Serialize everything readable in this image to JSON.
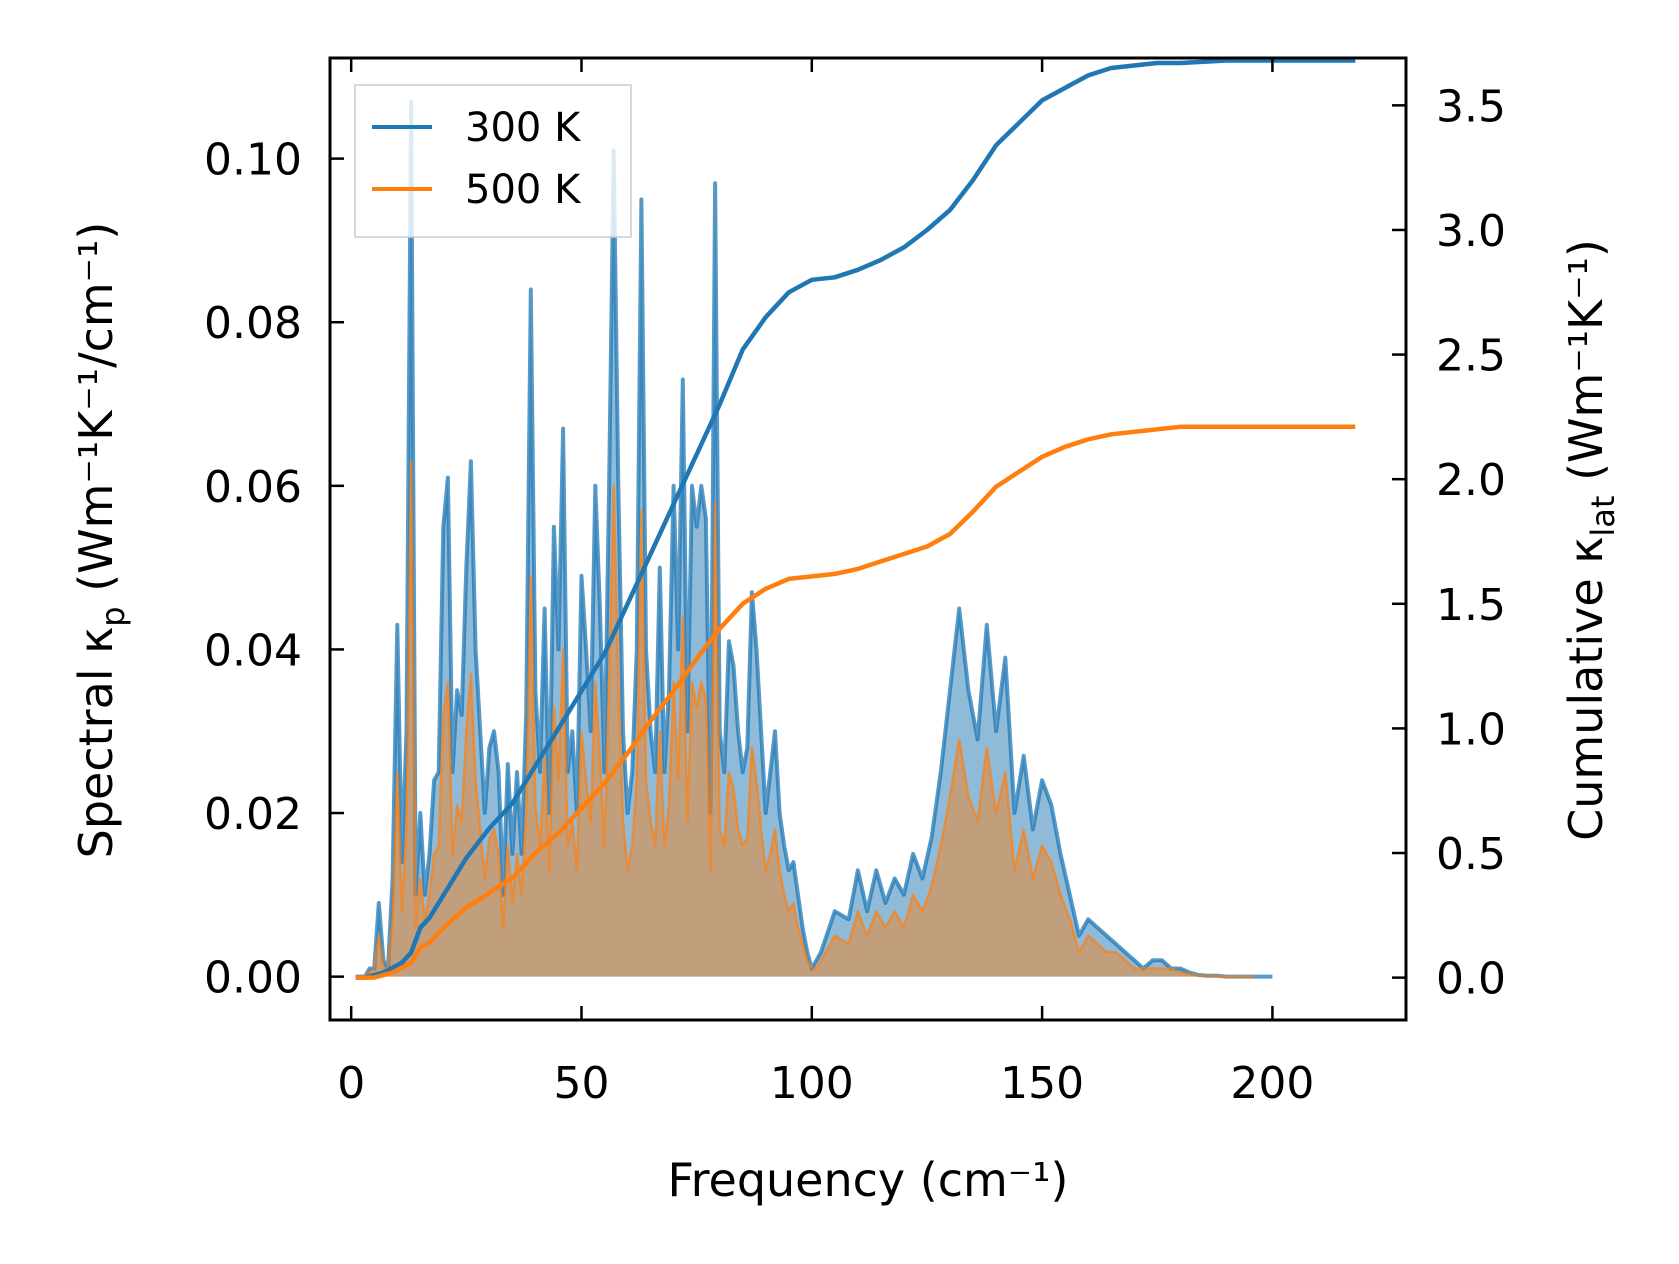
{
  "chart_data": {
    "type": "line",
    "x_label": "Frequency (cm⁻¹)",
    "y_label_left": "Spectral κₚ (Wm⁻¹K⁻¹/cm⁻¹)",
    "y_label_right": "Cumulative κ_lat (Wm⁻¹K⁻¹)",
    "y_label_left_parts": {
      "main": "Spectral κ",
      "sub": "p",
      "rest": " (Wm⁻¹K⁻¹/cm⁻¹)"
    },
    "y_label_right_parts": {
      "main": "Cumulative κ",
      "sub": "lat",
      "rest": " (Wm⁻¹K⁻¹)"
    },
    "x_ticks": [
      "0",
      "50",
      "100",
      "150",
      "200"
    ],
    "x_tick_values": [
      0,
      50,
      100,
      150,
      200
    ],
    "y_left_ticks": [
      "0.00",
      "0.02",
      "0.04",
      "0.06",
      "0.08",
      "0.10"
    ],
    "y_left_tick_values": [
      0,
      0.02,
      0.04,
      0.06,
      0.08,
      0.1
    ],
    "y_right_ticks": [
      "0.0",
      "0.5",
      "1.0",
      "1.5",
      "2.0",
      "2.5",
      "3.0",
      "3.5"
    ],
    "y_right_tick_values": [
      0,
      0.5,
      1.0,
      1.5,
      2.0,
      2.5,
      3.0,
      3.5
    ],
    "xlim": [
      -4.6,
      229
    ],
    "ylim_left": [
      -0.0053,
      0.1123
    ],
    "ylim_right": [
      -0.17,
      3.69
    ],
    "legend": {
      "position": "top-left",
      "entries": [
        "300 K",
        "500 K"
      ]
    },
    "series": [
      {
        "name": "300 K",
        "color": "#1f77b4",
        "spectral_x": [
          1,
          2,
          3,
          4,
          5,
          6,
          7,
          8,
          9,
          10,
          11,
          12,
          13,
          14,
          15,
          16,
          17,
          18,
          19,
          20,
          21,
          22,
          23,
          24,
          25,
          26,
          27,
          28,
          29,
          30,
          31,
          32,
          33,
          34,
          35,
          36,
          37,
          38,
          39,
          40,
          41,
          42,
          43,
          44,
          45,
          46,
          47,
          48,
          49,
          50,
          51,
          52,
          53,
          54,
          55,
          56,
          57,
          58,
          59,
          60,
          61,
          62,
          63,
          64,
          65,
          66,
          67,
          68,
          69,
          70,
          71,
          72,
          73,
          74,
          75,
          76,
          77,
          78,
          79,
          80,
          81,
          82,
          83,
          84,
          85,
          86,
          87,
          88,
          89,
          90,
          91,
          92,
          93,
          94,
          95,
          96,
          97,
          98,
          99,
          100,
          101,
          102,
          105,
          108,
          110,
          112,
          114,
          116,
          118,
          120,
          122,
          124,
          126,
          128,
          130,
          132,
          134,
          136,
          138,
          140,
          142,
          144,
          146,
          148,
          150,
          152,
          154,
          156,
          158,
          160,
          162,
          164,
          166,
          168,
          170,
          172,
          174,
          176,
          178,
          180,
          182,
          184,
          186,
          188,
          190,
          192,
          194,
          196,
          200,
          210,
          218
        ],
        "spectral_y": [
          0,
          0,
          0,
          0.001,
          0.001,
          0.009,
          0.002,
          0.001,
          0.012,
          0.043,
          0.014,
          0.03,
          0.107,
          0.01,
          0.02,
          0.01,
          0.015,
          0.024,
          0.025,
          0.055,
          0.061,
          0.025,
          0.035,
          0.032,
          0.05,
          0.063,
          0.04,
          0.03,
          0.02,
          0.028,
          0.03,
          0.025,
          0.01,
          0.026,
          0.015,
          0.025,
          0.015,
          0.032,
          0.084,
          0.035,
          0.025,
          0.045,
          0.02,
          0.055,
          0.04,
          0.067,
          0.025,
          0.03,
          0.02,
          0.049,
          0.04,
          0.03,
          0.06,
          0.045,
          0.025,
          0.06,
          0.101,
          0.06,
          0.03,
          0.02,
          0.025,
          0.04,
          0.095,
          0.04,
          0.03,
          0.025,
          0.05,
          0.025,
          0.035,
          0.06,
          0.04,
          0.073,
          0.03,
          0.06,
          0.055,
          0.06,
          0.056,
          0.02,
          0.097,
          0.03,
          0.025,
          0.041,
          0.038,
          0.03,
          0.025,
          0.028,
          0.047,
          0.04,
          0.03,
          0.02,
          0.025,
          0.03,
          0.02,
          0.016,
          0.013,
          0.014,
          0.01,
          0.006,
          0.003,
          0.001,
          0.002,
          0.003,
          0.008,
          0.007,
          0.013,
          0.008,
          0.013,
          0.009,
          0.012,
          0.01,
          0.015,
          0.012,
          0.017,
          0.025,
          0.035,
          0.045,
          0.035,
          0.029,
          0.043,
          0.03,
          0.039,
          0.02,
          0.027,
          0.018,
          0.024,
          0.021,
          0.015,
          0.01,
          0.005,
          0.007,
          0.006,
          0.005,
          0.004,
          0.003,
          0.002,
          0.001,
          0.002,
          0.002,
          0.001,
          0.001,
          0.0005,
          0.0002,
          0.0001,
          0.0001,
          0,
          0,
          0,
          0,
          0
        ],
        "cumulative_x": [
          1,
          3,
          5,
          7,
          9,
          11,
          13,
          15,
          17,
          20,
          25,
          30,
          35,
          40,
          45,
          50,
          55,
          60,
          65,
          70,
          75,
          80,
          85,
          90,
          95,
          100,
          105,
          110,
          115,
          120,
          125,
          130,
          135,
          140,
          145,
          150,
          155,
          160,
          165,
          170,
          175,
          180,
          190,
          200,
          210,
          218
        ],
        "cumulative_y": [
          0,
          0,
          0.01,
          0.02,
          0.04,
          0.06,
          0.1,
          0.2,
          0.24,
          0.33,
          0.48,
          0.6,
          0.7,
          0.85,
          1.0,
          1.15,
          1.3,
          1.5,
          1.7,
          1.9,
          2.1,
          2.3,
          2.52,
          2.65,
          2.75,
          2.8,
          2.81,
          2.84,
          2.88,
          2.93,
          3.0,
          3.08,
          3.2,
          3.34,
          3.43,
          3.52,
          3.57,
          3.62,
          3.65,
          3.66,
          3.67,
          3.67,
          3.68,
          3.68,
          3.68,
          3.68
        ]
      },
      {
        "name": "500 K",
        "color": "#ff7f0e",
        "spectral_x": [
          1,
          2,
          3,
          4,
          5,
          6,
          7,
          8,
          9,
          10,
          11,
          12,
          13,
          14,
          15,
          16,
          17,
          18,
          19,
          20,
          21,
          22,
          23,
          24,
          25,
          26,
          27,
          28,
          29,
          30,
          31,
          32,
          33,
          34,
          35,
          36,
          37,
          38,
          39,
          40,
          41,
          42,
          43,
          44,
          45,
          46,
          47,
          48,
          49,
          50,
          51,
          52,
          53,
          54,
          55,
          56,
          57,
          58,
          59,
          60,
          61,
          62,
          63,
          64,
          65,
          66,
          67,
          68,
          69,
          70,
          71,
          72,
          73,
          74,
          75,
          76,
          77,
          78,
          79,
          80,
          81,
          82,
          83,
          84,
          85,
          86,
          87,
          88,
          89,
          90,
          91,
          92,
          93,
          94,
          95,
          96,
          97,
          98,
          99,
          100,
          101,
          102,
          105,
          108,
          110,
          112,
          114,
          116,
          118,
          120,
          122,
          124,
          126,
          128,
          130,
          132,
          134,
          136,
          138,
          140,
          142,
          144,
          146,
          148,
          150,
          152,
          154,
          156,
          158,
          160,
          162,
          164,
          166,
          168,
          170,
          172,
          174,
          176,
          178,
          180,
          182,
          184,
          186,
          188,
          190,
          192,
          194,
          196,
          200,
          210,
          218
        ],
        "spectral_y": [
          0,
          0,
          0,
          0.0005,
          0.001,
          0.005,
          0.001,
          0.001,
          0.007,
          0.025,
          0.008,
          0.018,
          0.063,
          0.006,
          0.012,
          0.007,
          0.01,
          0.015,
          0.016,
          0.032,
          0.036,
          0.015,
          0.021,
          0.019,
          0.03,
          0.037,
          0.024,
          0.018,
          0.012,
          0.017,
          0.018,
          0.015,
          0.006,
          0.016,
          0.009,
          0.015,
          0.01,
          0.02,
          0.049,
          0.021,
          0.016,
          0.027,
          0.013,
          0.033,
          0.024,
          0.04,
          0.016,
          0.019,
          0.013,
          0.03,
          0.024,
          0.019,
          0.036,
          0.027,
          0.016,
          0.036,
          0.06,
          0.036,
          0.019,
          0.013,
          0.016,
          0.024,
          0.057,
          0.024,
          0.019,
          0.016,
          0.03,
          0.016,
          0.021,
          0.036,
          0.024,
          0.044,
          0.019,
          0.036,
          0.033,
          0.036,
          0.034,
          0.013,
          0.058,
          0.018,
          0.016,
          0.025,
          0.023,
          0.018,
          0.016,
          0.017,
          0.028,
          0.024,
          0.018,
          0.013,
          0.015,
          0.018,
          0.013,
          0.01,
          0.008,
          0.009,
          0.006,
          0.004,
          0.002,
          0.001,
          0.001,
          0.002,
          0.005,
          0.004,
          0.008,
          0.005,
          0.008,
          0.006,
          0.008,
          0.006,
          0.01,
          0.008,
          0.011,
          0.016,
          0.022,
          0.029,
          0.022,
          0.019,
          0.028,
          0.02,
          0.025,
          0.013,
          0.018,
          0.012,
          0.016,
          0.014,
          0.01,
          0.007,
          0.003,
          0.005,
          0.004,
          0.003,
          0.003,
          0.002,
          0.001,
          0.001,
          0.001,
          0.001,
          0.001,
          0.0005,
          0.0003,
          0.0001,
          0.0001,
          0,
          0,
          0,
          0,
          0
        ],
        "cumulative_x": [
          1,
          3,
          5,
          7,
          9,
          11,
          13,
          15,
          17,
          20,
          25,
          30,
          35,
          40,
          45,
          50,
          55,
          60,
          65,
          70,
          75,
          80,
          85,
          90,
          95,
          100,
          105,
          110,
          115,
          120,
          125,
          130,
          135,
          140,
          145,
          150,
          155,
          160,
          165,
          170,
          175,
          180,
          190,
          200,
          210,
          218
        ],
        "cumulative_y": [
          0,
          0,
          0,
          0.01,
          0.02,
          0.04,
          0.06,
          0.12,
          0.14,
          0.2,
          0.28,
          0.34,
          0.4,
          0.5,
          0.58,
          0.68,
          0.78,
          0.9,
          1.03,
          1.15,
          1.28,
          1.4,
          1.5,
          1.56,
          1.6,
          1.61,
          1.62,
          1.64,
          1.67,
          1.7,
          1.73,
          1.78,
          1.87,
          1.97,
          2.03,
          2.09,
          2.13,
          2.16,
          2.18,
          2.19,
          2.2,
          2.21,
          2.21,
          2.21,
          2.21,
          2.21
        ]
      }
    ]
  }
}
